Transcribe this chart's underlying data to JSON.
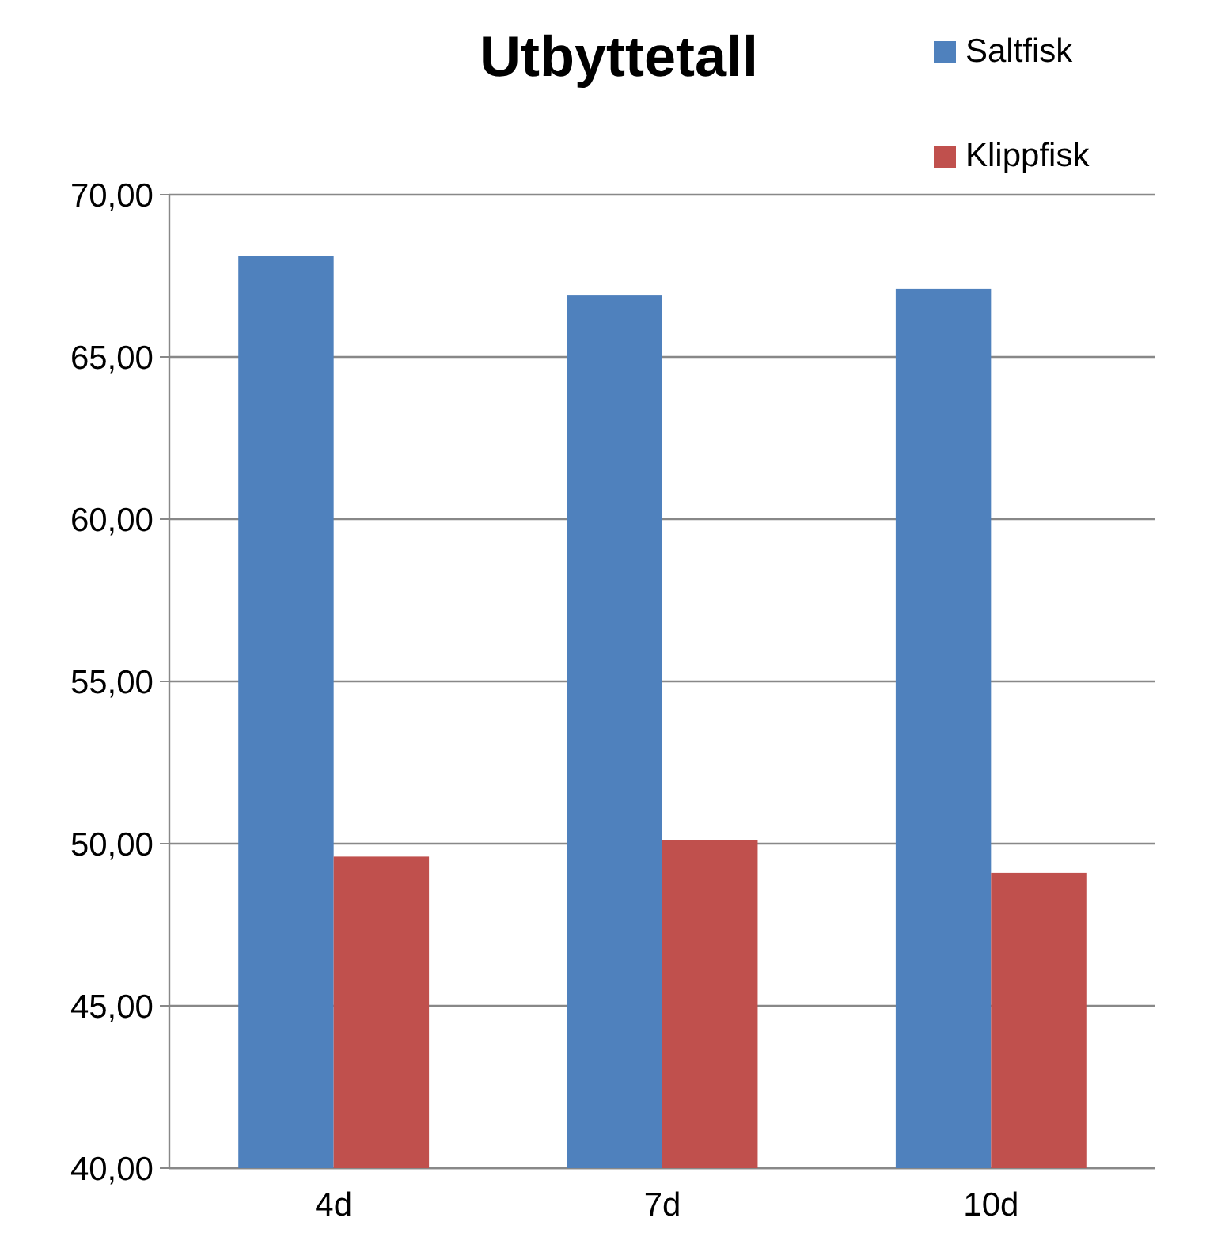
{
  "chart_data": {
    "type": "bar",
    "title": "Utbyttetall",
    "categories": [
      "4d",
      "7d",
      "10d"
    ],
    "series": [
      {
        "name": "Saltfisk",
        "color": "#4f81bd",
        "values": [
          68.1,
          66.9,
          67.1
        ]
      },
      {
        "name": "Klippfisk",
        "color": "#c0504d",
        "values": [
          49.6,
          50.1,
          49.1
        ]
      }
    ],
    "ylim": [
      40,
      70
    ],
    "yticks": [
      {
        "value": 40,
        "label": "40,00"
      },
      {
        "value": 45,
        "label": "45,00"
      },
      {
        "value": 50,
        "label": "50,00"
      },
      {
        "value": 55,
        "label": "55,00"
      },
      {
        "value": 60,
        "label": "60,00"
      },
      {
        "value": 65,
        "label": "65,00"
      },
      {
        "value": 70,
        "label": "70,00"
      }
    ],
    "grid": "y",
    "legend": "top right"
  }
}
